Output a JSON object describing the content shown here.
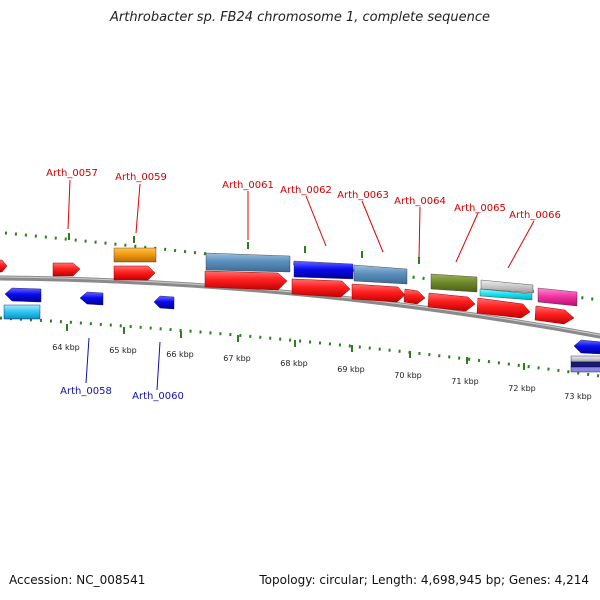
{
  "title": "Arthrobacter sp. FB24 chromosome 1, complete sequence",
  "footer": {
    "accession": "Accession: NC_008541",
    "topology": "Topology: circular; Length: 4,698,945 bp; Genes: 4,214"
  },
  "colors": {
    "backbone": "#8a8a8a",
    "tick": "#2e7d1e",
    "forward_label": "#d00000",
    "reverse_label": "#1010b0",
    "cds": "#ff1f1f"
  },
  "scale": {
    "unit": "kbp",
    "labels": [
      "64 kbp",
      "65 kbp",
      "66 kbp",
      "67 kbp",
      "68 kbp",
      "69 kbp",
      "70 kbp",
      "71 kbp",
      "72 kbp",
      "73 kbp"
    ]
  },
  "forward_labels": [
    "Arth_0057",
    "Arth_0059",
    "Arth_0061",
    "Arth_0062",
    "Arth_0063",
    "Arth_0064",
    "Arth_0065",
    "Arth_0066"
  ],
  "reverse_labels": [
    "Arth_0058",
    "Arth_0060"
  ]
}
